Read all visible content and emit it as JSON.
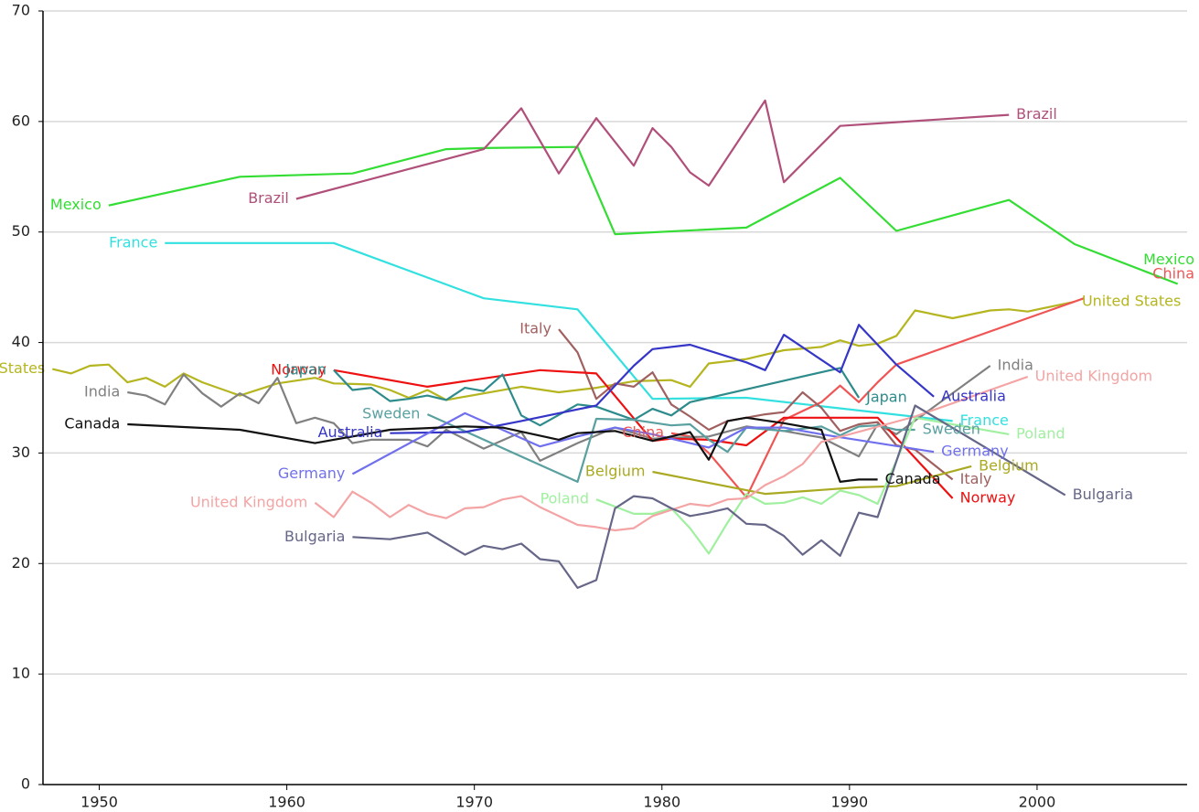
{
  "chart_data": {
    "type": "line",
    "xlim": [
      1947,
      2008
    ],
    "xticks": [
      1950,
      1960,
      1970,
      1980,
      1990,
      2000
    ],
    "ylim": [
      0,
      70
    ],
    "yticks": [
      0,
      10,
      20,
      30,
      40,
      50,
      60,
      70
    ],
    "grid": true,
    "series": [
      {
        "name": "Mexico",
        "color": "#33dd33",
        "x": [
          1950.5,
          1957.5,
          1963.5,
          1968.5,
          1970.5,
          1975.5,
          1977.5,
          1984.5,
          1989.5,
          1992.5,
          1998.5,
          2002,
          2007.5
        ],
        "values": [
          52.4,
          55,
          55.3,
          57.5,
          57.6,
          57.7,
          49.8,
          50.4,
          54.9,
          50.1,
          52.9,
          48.9,
          45.3
        ]
      },
      {
        "name": "Brazil",
        "color": "#b0507a",
        "x": [
          1960.5,
          1970.5,
          1972.5,
          1974.5,
          1976.5,
          1978.5,
          1979.5,
          1980.5,
          1981.5,
          1982.5,
          1985.5,
          1986.5,
          1989.5,
          1998.5
        ],
        "values": [
          53,
          57.5,
          61.2,
          55.3,
          60.3,
          56,
          59.4,
          57.7,
          55.4,
          54.2,
          61.9,
          54.5,
          59.6,
          60.6
        ]
      },
      {
        "name": "France",
        "color": "#33e0e0",
        "x": [
          1953.5,
          1962.5,
          1970.5,
          1975.5,
          1979.5,
          1984.5,
          1995.5
        ],
        "values": [
          49,
          49,
          44,
          43,
          34.9,
          35,
          32.9
        ]
      },
      {
        "name": "United States",
        "color": "#b5b520",
        "x": [
          1947.5,
          1948.5,
          1949.5,
          1950.5,
          1951.5,
          1952.5,
          1953.5,
          1954.5,
          1955.5,
          1957.5,
          1959.5,
          1961.5,
          1962.5,
          1964.5,
          1965.5,
          1966.5,
          1967.5,
          1968.5,
          1972.5,
          1974.5,
          1976.5,
          1978.5,
          1980.5,
          1981.5,
          1982.5,
          1984.5,
          1986.5,
          1988.5,
          1989.5,
          1990.5,
          1991.5,
          1992.5,
          1993.5,
          1995.5,
          1997.5,
          1998.5,
          1999.5,
          2002
        ],
        "values": [
          37.6,
          37.2,
          37.9,
          38,
          36.4,
          36.8,
          36,
          37.2,
          36.4,
          35.2,
          36.3,
          36.8,
          36.3,
          36.2,
          35.7,
          35,
          35.7,
          34.8,
          36,
          35.5,
          35.9,
          36.5,
          36.6,
          36,
          38.1,
          38.5,
          39.3,
          39.6,
          40.2,
          39.7,
          39.9,
          40.6,
          42.9,
          42.2,
          42.9,
          43,
          42.8,
          43.7
        ]
      },
      {
        "name": "China",
        "color": "#f05555",
        "x": [
          1980.5,
          1981.5,
          1982.5,
          1984.5,
          1986.5,
          1988.5,
          1989.5,
          1990.5,
          1991.5,
          1992.5,
          2002.5
        ],
        "values": [
          31.8,
          31.5,
          30,
          26,
          33,
          34.6,
          36.1,
          34.6,
          36.4,
          38,
          44
        ]
      },
      {
        "name": "Italy",
        "color": "#a06060",
        "x": [
          1974.5,
          1975.5,
          1976.5,
          1977.5,
          1978.5,
          1979.5,
          1980.5,
          1981.5,
          1982.5,
          1983.5,
          1985.5,
          1986.5,
          1987.5,
          1988.5,
          1989.5,
          1990.5,
          1991.5,
          1992.5,
          1993.5,
          1995.5
        ],
        "values": [
          41.2,
          39.1,
          34.9,
          36.3,
          36,
          37.3,
          34.4,
          33.3,
          32.1,
          32.9,
          33.5,
          33.7,
          35.5,
          34.1,
          32,
          32.6,
          32.8,
          30.7,
          30.3,
          27.6
        ]
      },
      {
        "name": "India",
        "color": "#808080",
        "x": [
          1951.5,
          1952.5,
          1953.5,
          1954.5,
          1955.5,
          1956.5,
          1957.5,
          1958.5,
          1959.5,
          1960.5,
          1961.5,
          1962.5,
          1963.5,
          1964.5,
          1966.5,
          1967.5,
          1968.5,
          1970.5,
          1972.5,
          1973.5,
          1975.5,
          1977.5,
          1979.5,
          1982.5,
          1984.5,
          1986.5,
          1988.5,
          1990.5,
          1991.5,
          1992.5,
          1997.5
        ],
        "values": [
          35.5,
          35.2,
          34.4,
          37.1,
          35.4,
          34.2,
          35.4,
          34.5,
          36.8,
          32.7,
          33.2,
          32.7,
          30.9,
          31.2,
          31.2,
          30.6,
          32.1,
          30.4,
          31.9,
          29.3,
          30.9,
          32.3,
          31.3,
          31.5,
          32.4,
          32,
          31.4,
          29.7,
          32.6,
          31.7,
          37.9
        ]
      },
      {
        "name": "Norway",
        "color": "#ee1111",
        "x": [
          1962.5,
          1967.5,
          1973.5,
          1976.5,
          1979.5,
          1980.5,
          1982.5,
          1984.5,
          1986.5,
          1991.5,
          1995.5
        ],
        "values": [
          37.5,
          36,
          37.5,
          37.2,
          31.1,
          31.3,
          31.2,
          30.7,
          33.2,
          33.2,
          25.9
        ]
      },
      {
        "name": "Japan",
        "color": "#2e8b8b",
        "x": [
          1962.5,
          1963.5,
          1964.5,
          1965.5,
          1966.5,
          1967.5,
          1968.5,
          1969.5,
          1970.5,
          1971.5,
          1972.5,
          1973.5,
          1975.5,
          1976.5,
          1978.5,
          1979.5,
          1980.5,
          1981.5,
          1989.5,
          1990.5
        ],
        "values": [
          37.5,
          35.7,
          35.9,
          34.7,
          34.9,
          35.2,
          34.8,
          35.9,
          35.6,
          37.1,
          33.4,
          32.5,
          34.4,
          34.2,
          33,
          34,
          33.4,
          34.6,
          37.7,
          35
        ]
      },
      {
        "name": "Sweden",
        "color": "#5aa0a0",
        "x": [
          1967.5,
          1975.5,
          1976.5,
          1978.5,
          1980.5,
          1981.5,
          1982.5,
          1983.5,
          1984.5,
          1986.5,
          1988.5,
          1989.5,
          1990.5,
          1991.5,
          1992.5,
          1993.5
        ],
        "values": [
          33.5,
          27.4,
          33.1,
          33,
          32.5,
          32.6,
          31.2,
          30.1,
          32.3,
          32,
          32.4,
          31.6,
          32.4,
          32.5,
          32.1,
          32.1
        ]
      },
      {
        "name": "Australia",
        "color": "#3535c8",
        "x": [
          1965.5,
          1969.5,
          1972.5,
          1976.5,
          1978.5,
          1979.5,
          1981.5,
          1984.5,
          1985.5,
          1986.5,
          1989.5,
          1990.5,
          1992.5,
          1994.5
        ],
        "values": [
          31.8,
          31.9,
          32.9,
          34.3,
          37.9,
          39.4,
          39.8,
          38.2,
          37.5,
          40.7,
          37.3,
          41.6,
          38,
          35.1
        ]
      },
      {
        "name": "Germany",
        "color": "#7070ee",
        "x": [
          1963.5,
          1969.5,
          1973.5,
          1975.5,
          1977.5,
          1979.5,
          1981.5,
          1982.5,
          1984.5,
          1986.5,
          1988.5,
          1994.5
        ],
        "values": [
          28.1,
          33.6,
          30.6,
          31.5,
          32.3,
          31.7,
          30.9,
          30.5,
          32.3,
          32.3,
          31.7,
          30.1
        ]
      },
      {
        "name": "Canada",
        "color": "#111111",
        "x": [
          1951.5,
          1957.5,
          1961.5,
          1965.5,
          1969.5,
          1971.5,
          1974.5,
          1975.5,
          1977.5,
          1979.5,
          1981.5,
          1982.5,
          1983.5,
          1984.5,
          1986.5,
          1988.5,
          1989.5,
          1990.5,
          1991.5
        ],
        "values": [
          32.6,
          32.1,
          30.9,
          32.1,
          32.4,
          32.3,
          31.2,
          31.8,
          32,
          31.1,
          31.9,
          29.4,
          32.9,
          33.2,
          32.7,
          32.1,
          27.4,
          27.6,
          27.6
        ]
      },
      {
        "name": "Belgium",
        "color": "#aaaa22",
        "x": [
          1979.5,
          1985.5,
          1990.5,
          1992.5,
          1996.5
        ],
        "values": [
          28.3,
          26.3,
          26.9,
          27,
          28.8
        ]
      },
      {
        "name": "Poland",
        "color": "#a0f0a0",
        "x": [
          1976.5,
          1978.5,
          1979.5,
          1980.5,
          1981.5,
          1982.5,
          1983.5,
          1984.5,
          1985.5,
          1986.5,
          1987.5,
          1988.5,
          1989.5,
          1990.5,
          1991.5,
          1993.5,
          1998.5
        ],
        "values": [
          25.8,
          24.5,
          24.5,
          25,
          23.2,
          20.9,
          23.7,
          26.3,
          25.4,
          25.5,
          26,
          25.4,
          26.6,
          26.2,
          25.4,
          33.2,
          31.7
        ]
      },
      {
        "name": "United Kingdom",
        "color": "#f4a4a4",
        "x": [
          1961.5,
          1962.5,
          1963.5,
          1964.5,
          1965.5,
          1966.5,
          1967.5,
          1968.5,
          1969.5,
          1970.5,
          1971.5,
          1972.5,
          1973.5,
          1975.5,
          1976.5,
          1977.5,
          1978.5,
          1979.5,
          1981.5,
          1982.5,
          1983.5,
          1984.5,
          1985.5,
          1986.5,
          1987.5,
          1988.5,
          1993.5,
          1999.5
        ],
        "values": [
          25.5,
          24.2,
          26.5,
          25.5,
          24.2,
          25.3,
          24.5,
          24.1,
          25,
          25.1,
          25.8,
          26.1,
          25.1,
          23.5,
          23.3,
          23,
          23.2,
          24.3,
          25.4,
          25.2,
          25.8,
          25.9,
          27.1,
          27.9,
          29,
          31,
          33.3,
          36.9
        ]
      },
      {
        "name": "Bulgaria",
        "color": "#666688",
        "x": [
          1963.5,
          1965.5,
          1967.5,
          1969.5,
          1970.5,
          1971.5,
          1972.5,
          1973.5,
          1974.5,
          1975.5,
          1976.5,
          1977.5,
          1978.5,
          1979.5,
          1980.5,
          1981.5,
          1982.5,
          1983.5,
          1984.5,
          1985.5,
          1986.5,
          1987.5,
          1988.5,
          1989.5,
          1990.5,
          1991.5,
          1993.5,
          2001.5
        ],
        "values": [
          22.4,
          22.2,
          22.8,
          20.8,
          21.6,
          21.3,
          21.8,
          20.4,
          20.2,
          17.8,
          18.5,
          25,
          26.1,
          25.9,
          25,
          24.3,
          24.6,
          25,
          23.6,
          23.5,
          22.5,
          20.8,
          22.1,
          20.7,
          24.6,
          24.2,
          34.3,
          26.2
        ]
      }
    ]
  }
}
